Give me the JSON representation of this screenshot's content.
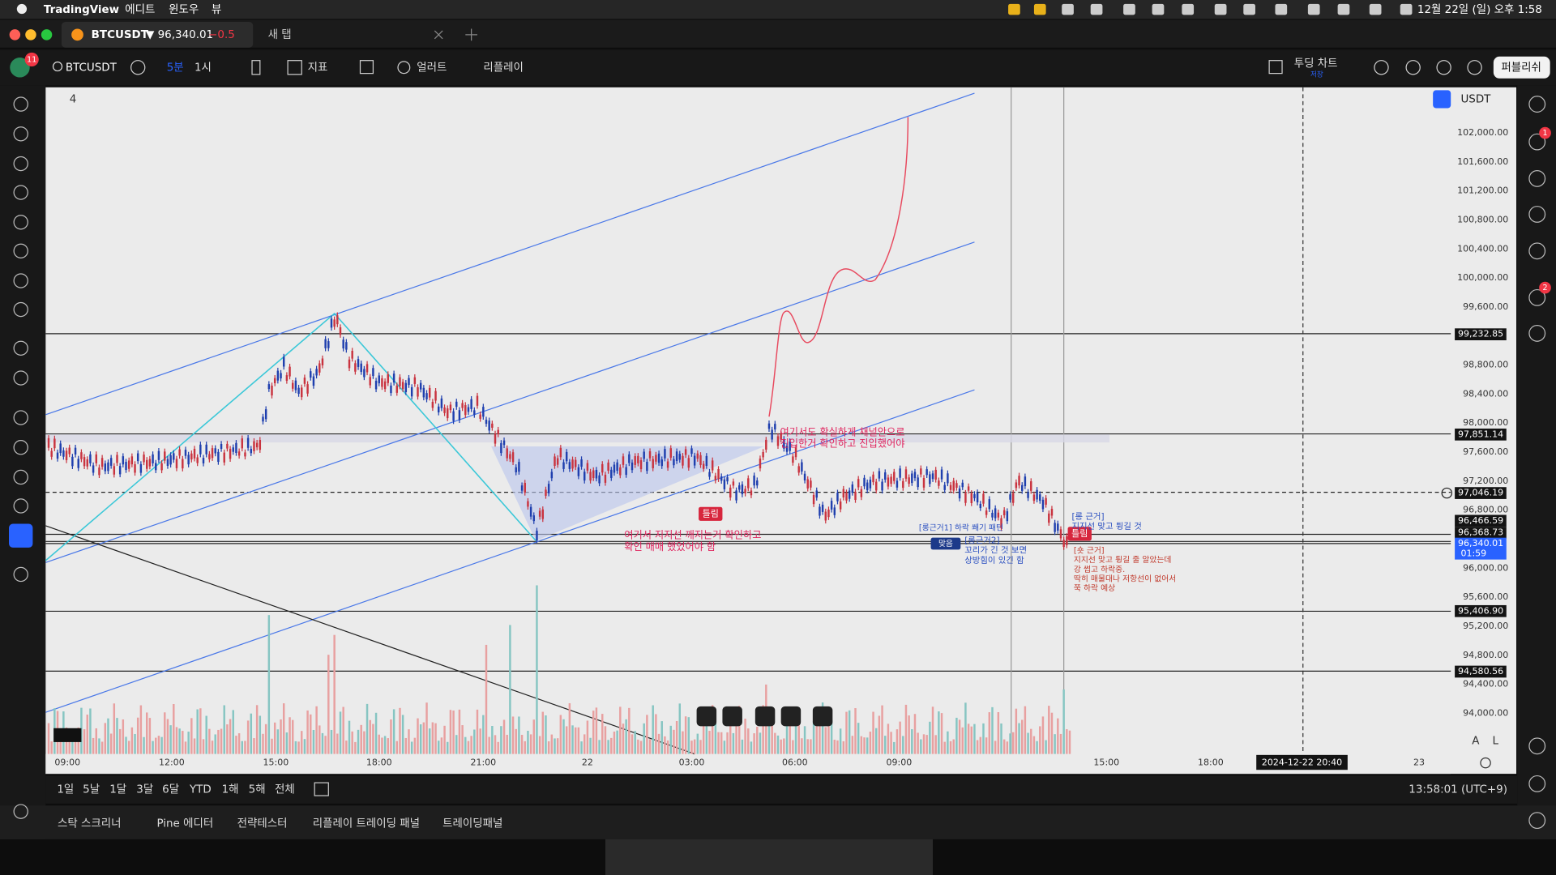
{
  "menu_bar": {
    "app": "TradingView",
    "items": [
      "에디트",
      "윈도우",
      "뷰"
    ],
    "clock": "12월 22일 (일) 오후 1:58"
  },
  "tabs": [
    {
      "title": "BTCUSDT",
      "price": "▼ 96,340.01",
      "change": "−0.5"
    },
    {
      "title": "새 탭"
    }
  ],
  "toolbar": {
    "badge": "11",
    "symbol": "BTCUSDT",
    "intervals": [
      "5분",
      "1시"
    ],
    "indicators": "지표",
    "alert": "얼러트",
    "replay": "리플레이",
    "layout": "투딩 차트",
    "layout_status": "저장",
    "publish": "퍼블리쉬"
  },
  "chart": {
    "legend_count": "4",
    "currency": "USDT",
    "price_axis": [
      "102,000.00",
      "101,600.00",
      "101,200.00",
      "100,800.00",
      "100,400.00",
      "100,000.00",
      "99,600.00",
      "98,800.00",
      "98,400.00",
      "98,000.00",
      "97,600.00",
      "97,200.00",
      "96,800.00",
      "96,000.00",
      "95,600.00",
      "95,200.00",
      "94,800.00",
      "94,400.00",
      "94,000.00"
    ],
    "price_badges": [
      "99,232.85",
      "97,851.14",
      "97,046.19",
      "96,466.59",
      "96,368.73",
      "96,340.01",
      "95,406.90",
      "94,580.56"
    ],
    "countdown": "01:59",
    "time_axis": [
      "09:00",
      "12:00",
      "15:00",
      "18:00",
      "21:00",
      "22",
      "03:00",
      "06:00",
      "09:00",
      "15:00",
      "18:00"
    ],
    "crosshair_time": "2024-12-22  20:40",
    "end_label": "23",
    "scale_modes": [
      "A",
      "L"
    ],
    "annotations": [
      {
        "lines": [
          "여기서도 확실하게 채널안으로",
          "진입한거 확인하고 진입했어야"
        ]
      },
      {
        "lines": [
          "여기서 지지선 깨지는거 확인하고",
          "확인 매매 했었어야 함"
        ]
      },
      {
        "lines": [
          "틀림"
        ]
      },
      {
        "lines": [
          "틀림"
        ]
      },
      {
        "lines": [
          "[롱근거1] 하락 쐐기 패턴"
        ]
      },
      {
        "lines": [
          "맞음"
        ]
      },
      {
        "lines": [
          "[롱근거2]",
          "꼬리가 긴 것 보면",
          "상방힘이 있긴 함"
        ]
      },
      {
        "lines": [
          "[롱 근거]",
          "지지선 맞고 튕길 것"
        ]
      },
      {
        "lines": [
          "[숏 근거]",
          "지지선 맞고 튕길 줄 알았는데",
          "강 썹고 하락중.",
          "딱히 매물대나 저항선이 없어서",
          "쭉 하락 예상"
        ]
      }
    ]
  },
  "range_bar": {
    "ranges": [
      "1일",
      "5날",
      "1달",
      "3달",
      "6달",
      "YTD",
      "1해",
      "5해",
      "전체"
    ],
    "clock": "13:58:01 (UTC+9)"
  },
  "bottom_tabs": [
    "스탁 스크리너",
    "Pine 에디터",
    "전략테스터",
    "리플레이 트레이딩 패널",
    "트레이딩패널"
  ],
  "sidebar_badges": [
    "1",
    "2"
  ]
}
